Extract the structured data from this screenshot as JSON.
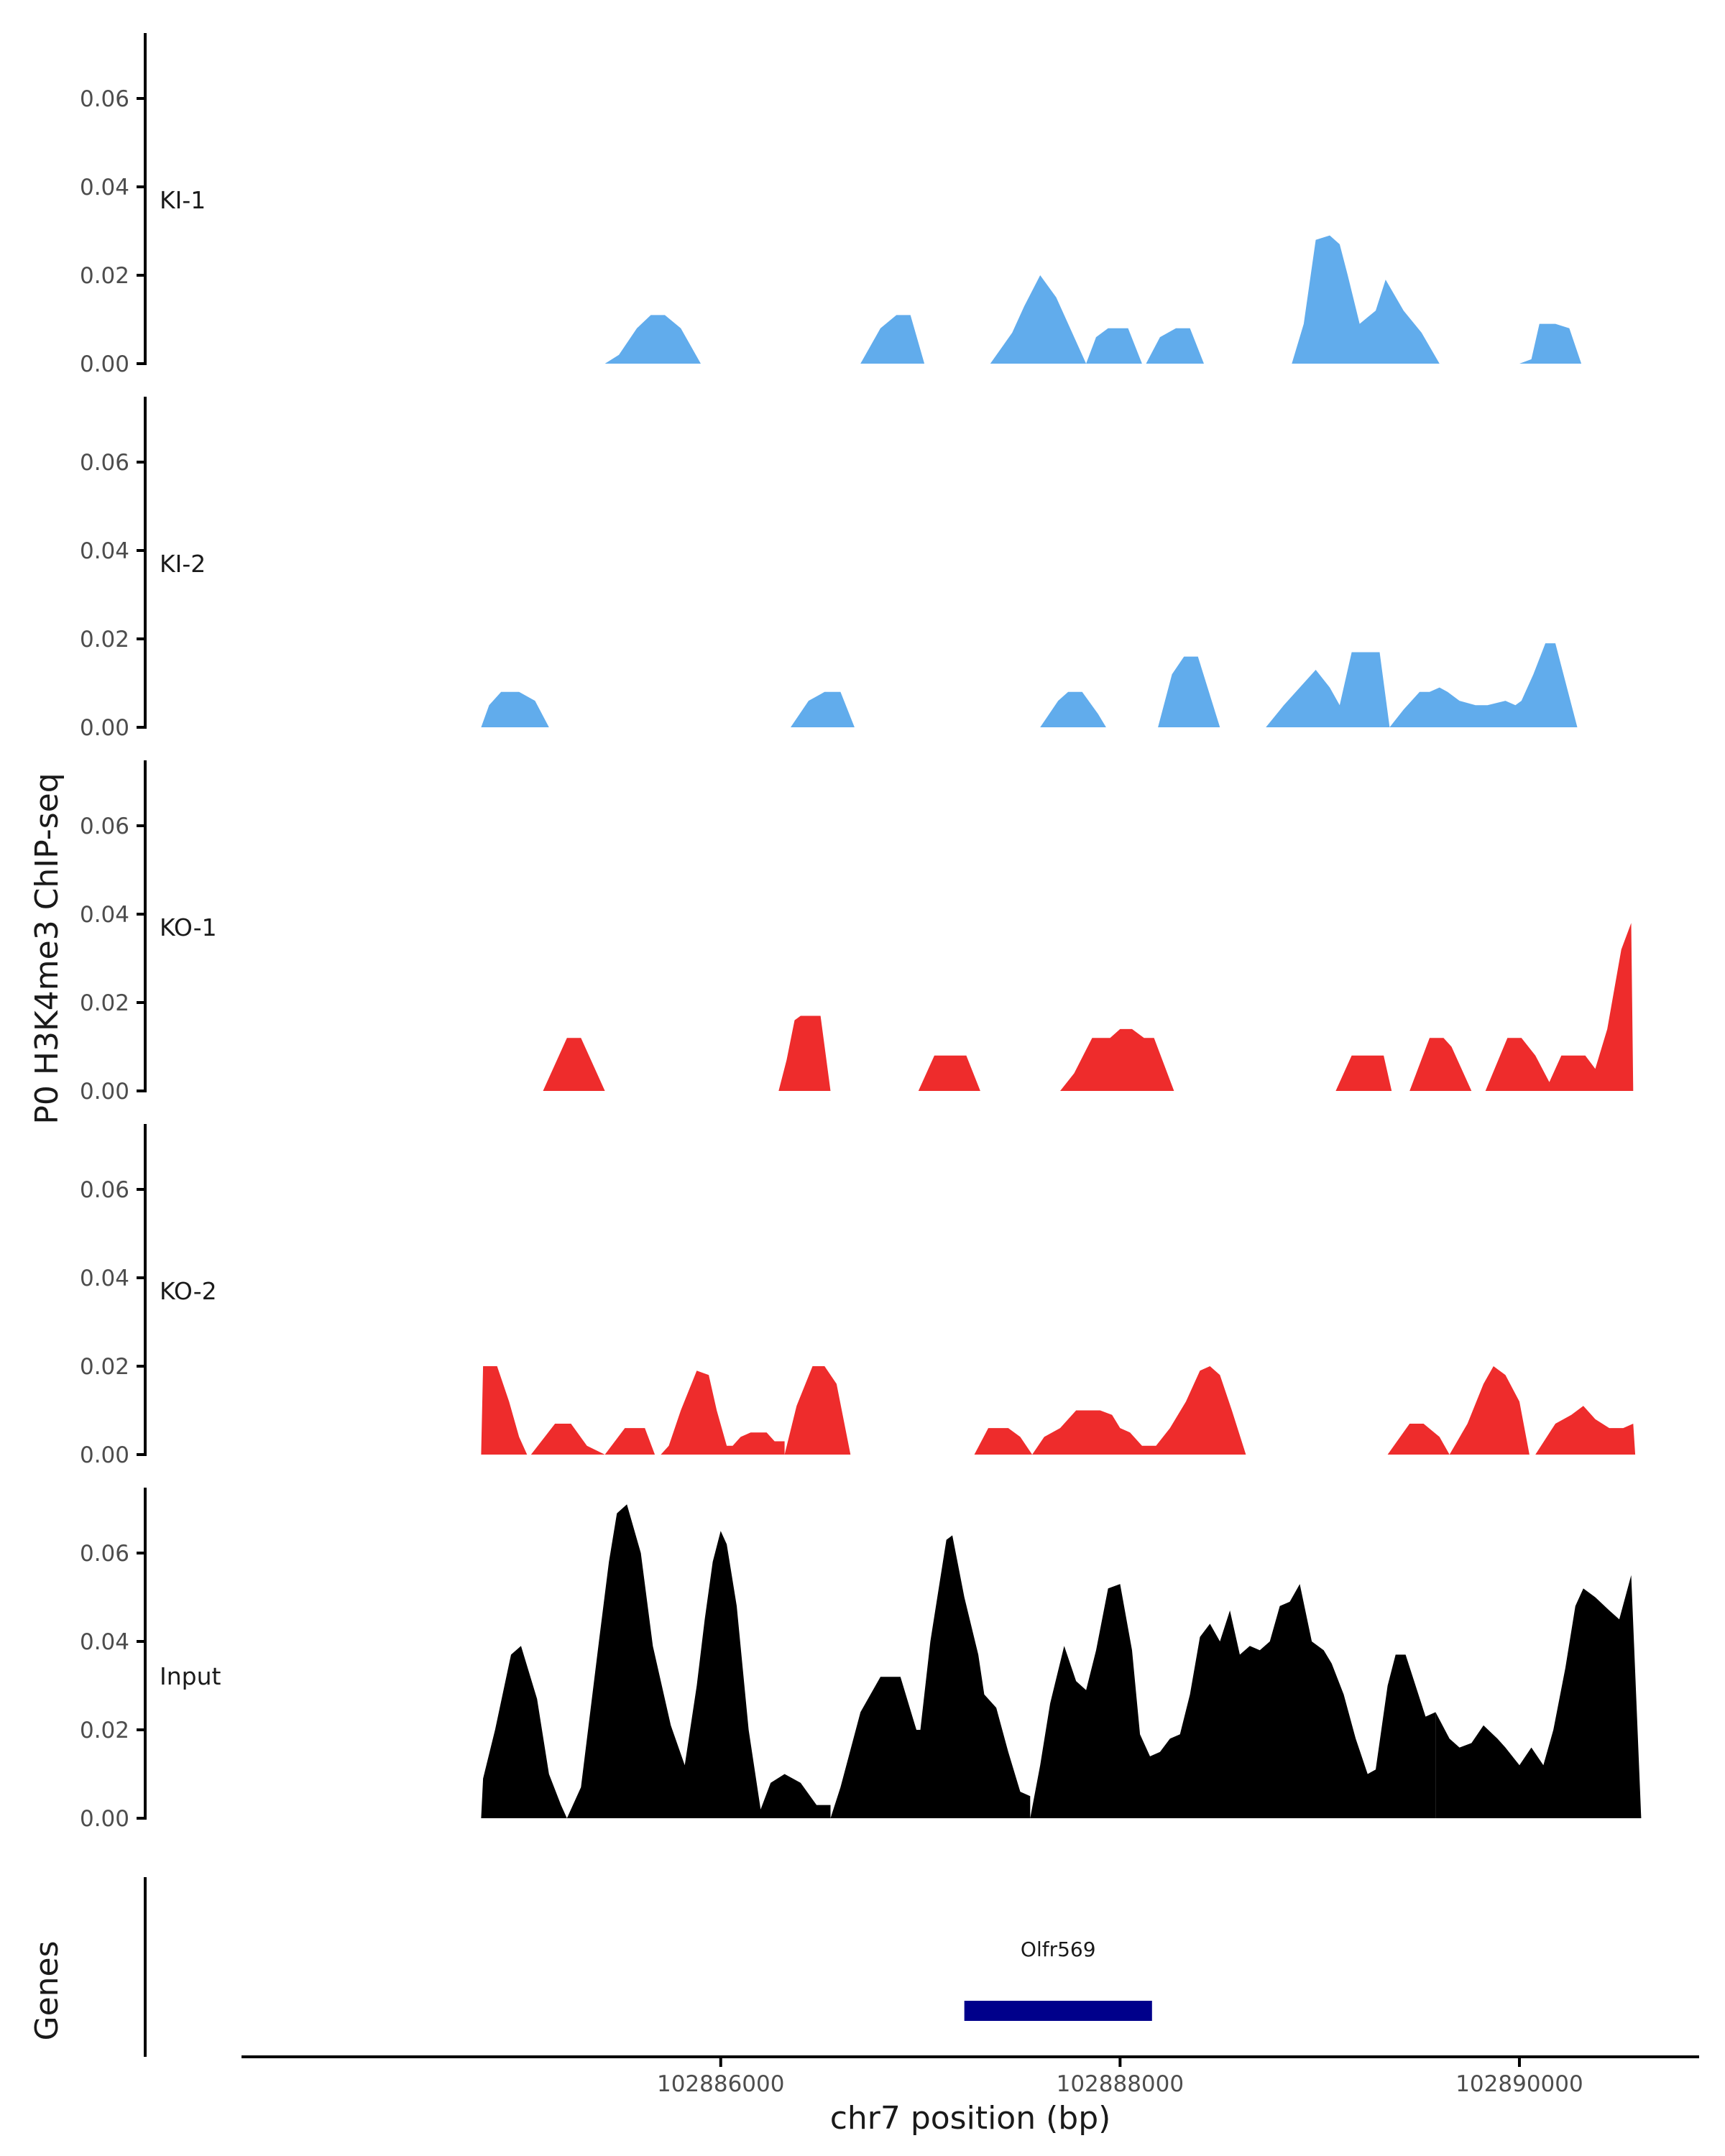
{
  "chart_data": {
    "type": "area",
    "ylabel": "P0 H3K4me3 ChIP-seq",
    "xlabel": "chr7 position (bp)",
    "gene_panel_label": "Genes",
    "ylim": [
      0,
      0.075
    ],
    "y_ticks": [
      "0.00",
      "0.02",
      "0.04",
      "0.06"
    ],
    "y_tick_values": [
      0,
      0.02,
      0.04,
      0.06
    ],
    "x_range": [
      102883600,
      102890900
    ],
    "x_ticks": [
      "102886000",
      "102888000",
      "102890000"
    ],
    "x_tick_values": [
      102886000,
      102888000,
      102890000
    ],
    "genes": [
      {
        "name": "Olfr569",
        "start": 102887220,
        "end": 102888160
      }
    ],
    "tracks": [
      {
        "name": "KI-1",
        "color": "#61acec",
        "peaks": [
          {
            "x": [
              102885420,
              102885490,
              102885580,
              102885650,
              102885720,
              102885800,
              102885900
            ],
            "y": [
              0,
              0.002,
              0.008,
              0.011,
              0.011,
              0.008,
              0
            ]
          },
          {
            "x": [
              102886700,
              102886800,
              102886880,
              102886950,
              102887020
            ],
            "y": [
              0,
              0.008,
              0.011,
              0.011,
              0
            ]
          },
          {
            "x": [
              102887350,
              102887460,
              102887520,
              102887600,
              102887680,
              102887750,
              102887830
            ],
            "y": [
              0,
              0.007,
              0.013,
              0.02,
              0.015,
              0.008,
              0
            ]
          },
          {
            "x": [
              102887830,
              102887880,
              102887940,
              102888040,
              102888110
            ],
            "y": [
              0,
              0.006,
              0.008,
              0.008,
              0
            ]
          },
          {
            "x": [
              102888130,
              102888200,
              102888280,
              102888350,
              102888420
            ],
            "y": [
              0,
              0.006,
              0.008,
              0.008,
              0
            ]
          },
          {
            "x": [
              102888860,
              102888920,
              102888980,
              102889050,
              102889100,
              102889140,
              102889200,
              102889280,
              102889330,
              102889420,
              102889510,
              102889600
            ],
            "y": [
              0,
              0.009,
              0.028,
              0.029,
              0.027,
              0.02,
              0.009,
              0.012,
              0.019,
              0.012,
              0.007,
              0
            ]
          },
          {
            "x": [
              102890000,
              102890060,
              102890100,
              102890180,
              102890250,
              102890310
            ],
            "y": [
              0,
              0.001,
              0.009,
              0.009,
              0.008,
              0
            ]
          }
        ]
      },
      {
        "name": "KI-2",
        "color": "#61acec",
        "peaks": [
          {
            "x": [
              102884800,
              102884840,
              102884900,
              102884990,
              102885070,
              102885140
            ],
            "y": [
              0,
              0.005,
              0.008,
              0.008,
              0.006,
              0
            ]
          },
          {
            "x": [
              102886350,
              102886440,
              102886520,
              102886600,
              102886670
            ],
            "y": [
              0,
              0.006,
              0.008,
              0.008,
              0
            ]
          },
          {
            "x": [
              102887600,
              102887690,
              102887740,
              102887810,
              102887890,
              102887930
            ],
            "y": [
              0,
              0.006,
              0.008,
              0.008,
              0.003,
              0
            ]
          },
          {
            "x": [
              102888190,
              102888260,
              102888320,
              102888390,
              102888500
            ],
            "y": [
              0,
              0.012,
              0.016,
              0.016,
              0
            ]
          },
          {
            "x": [
              102888730,
              102888820,
              102888900,
              102888980,
              102889050,
              102889100,
              102889160,
              102889220,
              102889300,
              102889350,
              102889420,
              102889500,
              102889550,
              102889600,
              102889640,
              102889700,
              102889780,
              102889840,
              102889930,
              102889980,
              102890010,
              102890070,
              102890130,
              102890180,
              102890290
            ],
            "y": [
              0,
              0.005,
              0.009,
              0.013,
              0.009,
              0.005,
              0.017,
              0.017,
              0.017,
              0,
              0.004,
              0.008,
              0.008,
              0.009,
              0.008,
              0.006,
              0.005,
              0.005,
              0.006,
              0.005,
              0.006,
              0.012,
              0.019,
              0.019,
              0
            ]
          }
        ]
      },
      {
        "name": "KO-1",
        "color": "#ee2c2c",
        "peaks": [
          {
            "x": [
              102885110,
              102885230,
              102885300,
              102885380,
              102885420
            ],
            "y": [
              0,
              0.012,
              0.012,
              0.004,
              0
            ]
          },
          {
            "x": [
              102886290,
              102886330,
              102886370,
              102886400,
              102886500,
              102886550
            ],
            "y": [
              0,
              0.007,
              0.016,
              0.017,
              0.017,
              0
            ]
          },
          {
            "x": [
              102886990,
              102887070,
              102887150,
              102887230,
              102887300
            ],
            "y": [
              0,
              0.008,
              0.008,
              0.008,
              0
            ]
          },
          {
            "x": [
              102887700,
              102887770,
              102887860,
              102887950,
              102888000,
              102888060,
              102888120,
              102888170,
              102888270
            ],
            "y": [
              0,
              0.004,
              0.012,
              0.012,
              0.014,
              0.014,
              0.012,
              0.012,
              0
            ]
          },
          {
            "x": [
              102889080,
              102889160,
              102889250,
              102889320,
              102889360
            ],
            "y": [
              0,
              0.008,
              0.008,
              0.008,
              0
            ]
          },
          {
            "x": [
              102889450,
              102889550,
              102889620,
              102889660,
              102889760
            ],
            "y": [
              0,
              0.012,
              0.012,
              0.01,
              0
            ]
          },
          {
            "x": [
              102889830,
              102889940,
              102890010,
              102890080,
              102890150,
              102890210,
              102890280,
              102890330,
              102890380,
              102890440,
              102890510,
              102890560,
              102890570
            ],
            "y": [
              0,
              0.012,
              0.012,
              0.008,
              0.002,
              0.008,
              0.008,
              0.008,
              0.005,
              0.014,
              0.032,
              0.038,
              0
            ]
          }
        ]
      },
      {
        "name": "KO-2",
        "color": "#ee2c2c",
        "peaks": [
          {
            "x": [
              102884800,
              102884810,
              102884880,
              102884940,
              102884990,
              102885030
            ],
            "y": [
              0,
              0.02,
              0.02,
              0.012,
              0.004,
              0
            ]
          },
          {
            "x": [
              102885050,
              102885170,
              102885250,
              102885330,
              102885420
            ],
            "y": [
              0,
              0.007,
              0.007,
              0.002,
              0
            ]
          },
          {
            "x": [
              102885420,
              102885520,
              102885620,
              102885670
            ],
            "y": [
              0,
              0.006,
              0.006,
              0
            ]
          },
          {
            "x": [
              102885700,
              102885740,
              102885800,
              102885880,
              102885940,
              102885980,
              102886030,
              102886060,
              102886100,
              102886150,
              102886230,
              102886270,
              102886320
            ],
            "y": [
              0,
              0.002,
              0.01,
              0.019,
              0.018,
              0.01,
              0.002,
              0.002,
              0.004,
              0.005,
              0.005,
              0.003,
              0.003
            ]
          },
          {
            "x": [
              102886320,
              102886380,
              102886460,
              102886520,
              102886580,
              102886650
            ],
            "y": [
              0,
              0.011,
              0.02,
              0.02,
              0.016,
              0
            ]
          },
          {
            "x": [
              102887270,
              102887340,
              102887440,
              102887500,
              102887560
            ],
            "y": [
              0,
              0.006,
              0.006,
              0.004,
              0
            ]
          },
          {
            "x": [
              102887560,
              102887620,
              102887700,
              102887780,
              102887850,
              102887900,
              102887960,
              102888000,
              102888050,
              102888110,
              102888180,
              102888250,
              102888330,
              102888400,
              102888450,
              102888500,
              102888560,
              102888630
            ],
            "y": [
              0,
              0.004,
              0.006,
              0.01,
              0.01,
              0.01,
              0.009,
              0.006,
              0.005,
              0.002,
              0.002,
              0.006,
              0.012,
              0.019,
              0.02,
              0.018,
              0.01,
              0
            ]
          },
          {
            "x": [
              102889340,
              102889450,
              102889520,
              102889600,
              102889650
            ],
            "y": [
              0,
              0.007,
              0.007,
              0.004,
              0
            ]
          },
          {
            "x": [
              102889650,
              102889740,
              102889820,
              102889870,
              102889930,
              102890000,
              102890050
            ],
            "y": [
              0,
              0.007,
              0.016,
              0.02,
              0.018,
              0.012,
              0
            ]
          },
          {
            "x": [
              102890080,
              102890180,
              102890260,
              102890320,
              102890380,
              102890450,
              102890520,
              102890570,
              102890580
            ],
            "y": [
              0,
              0.007,
              0.009,
              0.011,
              0.008,
              0.006,
              0.006,
              0.007,
              0
            ]
          }
        ]
      },
      {
        "name": "Input",
        "color": "#000000",
        "peaks": [
          {
            "x": [
              102884800,
              102884810,
              102884870,
              102884950,
              102885000,
              102885080,
              102885140,
              102885200,
              102885230
            ],
            "y": [
              0,
              0.009,
              0.02,
              0.037,
              0.039,
              0.027,
              0.01,
              0.003,
              0
            ]
          },
          {
            "x": [
              102885230,
              102885300,
              102885390,
              102885440,
              102885480,
              102885530,
              102885600,
              102885660,
              102885750,
              102885820,
              102885880,
              102885920,
              102885960,
              102886000,
              102886030,
              102886080,
              102886140,
              102886200,
              102886250,
              102886320,
              102886400,
              102886480,
              102886550
            ],
            "y": [
              0,
              0.007,
              0.04,
              0.058,
              0.069,
              0.071,
              0.06,
              0.039,
              0.021,
              0.012,
              0.03,
              0.045,
              0.058,
              0.065,
              0.062,
              0.048,
              0.02,
              0.002,
              0.008,
              0.01,
              0.008,
              0.003,
              0.003
            ]
          },
          {
            "x": [
              102886550,
              102886600,
              102886700,
              102886800,
              102886900,
              102886980,
              102887000,
              102887050,
              102887130,
              102887160,
              102887220,
              102887290,
              102887320,
              102887380,
              102887440,
              102887500,
              102887550
            ],
            "y": [
              0,
              0.007,
              0.024,
              0.032,
              0.032,
              0.02,
              0.02,
              0.04,
              0.063,
              0.064,
              0.05,
              0.037,
              0.028,
              0.025,
              0.015,
              0.006,
              0.005
            ]
          },
          {
            "x": [
              102887550,
              102887600,
              102887650,
              102887720,
              102887780,
              102887830,
              102887880,
              102887940,
              102888000,
              102888060,
              102888100,
              102888150,
              102888200,
              102888250,
              102888300,
              102888350,
              102888400
            ],
            "y": [
              0,
              0.012,
              0.026,
              0.039,
              0.031,
              0.029,
              0.038,
              0.052,
              0.053,
              0.038,
              0.019,
              0.014,
              0.015,
              0.018,
              0.019,
              0.028,
              0.041
            ]
          },
          {
            "x": [
              102888400,
              102888450,
              102888500,
              102888550,
              102888600,
              102888650,
              102888700,
              102888750,
              102888800,
              102888850,
              102888900,
              102888960,
              102889020,
              102889060,
              102889120,
              102889180,
              102889240,
              102889280,
              102889340,
              102889380,
              102889430,
              102889480,
              102889530,
              102889580
            ],
            "y": [
              0.041,
              0.044,
              0.04,
              0.047,
              0.037,
              0.039,
              0.038,
              0.04,
              0.048,
              0.049,
              0.053,
              0.04,
              0.038,
              0.035,
              0.028,
              0.018,
              0.01,
              0.011,
              0.03,
              0.037,
              0.037,
              0.03,
              0.023,
              0.024
            ]
          },
          {
            "x": [
              102889580,
              102889650,
              102889700,
              102889760,
              102889820,
              102889890,
              102889930,
              102890000,
              102890060,
              102890120,
              102890170,
              102890230,
              102890280,
              102890320,
              102890380,
              102890450,
              102890500,
              102890560,
              102890610
            ],
            "y": [
              0.024,
              0.018,
              0.016,
              0.017,
              0.021,
              0.018,
              0.016,
              0.012,
              0.016,
              0.012,
              0.02,
              0.034,
              0.048,
              0.052,
              0.05,
              0.047,
              0.045,
              0.055,
              0
            ]
          }
        ]
      }
    ]
  }
}
